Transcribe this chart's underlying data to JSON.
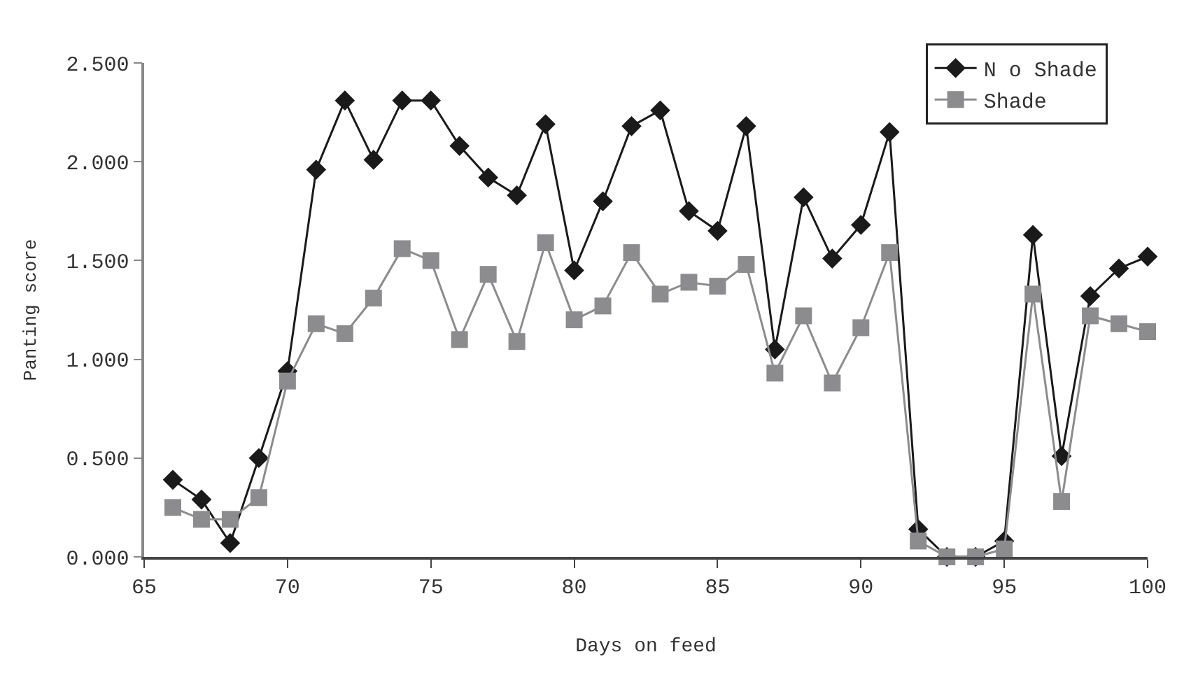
{
  "chart_data": {
    "type": "line",
    "xlabel": "Days on feed",
    "ylabel": "Panting score",
    "x": [
      66,
      67,
      68,
      69,
      70,
      71,
      72,
      73,
      74,
      75,
      76,
      77,
      78,
      79,
      80,
      81,
      82,
      83,
      84,
      85,
      86,
      87,
      88,
      89,
      90,
      91,
      92,
      93,
      94,
      95,
      96,
      97,
      98,
      99,
      100
    ],
    "series": [
      {
        "name": "N o Shade",
        "color": "#1a1a1a",
        "marker": "diamond",
        "values": [
          0.39,
          0.29,
          0.07,
          0.5,
          0.94,
          1.96,
          2.31,
          2.01,
          2.31,
          2.31,
          2.08,
          1.92,
          1.83,
          2.19,
          1.45,
          1.8,
          2.18,
          2.26,
          1.75,
          1.65,
          2.18,
          1.05,
          1.82,
          1.51,
          1.68,
          2.15,
          0.14,
          0.0,
          0.0,
          0.08,
          1.63,
          0.51,
          1.32,
          1.46,
          1.52
        ]
      },
      {
        "name": "Shade",
        "color": "#8c8c8e",
        "marker": "square",
        "values": [
          0.25,
          0.19,
          0.19,
          0.3,
          0.89,
          1.18,
          1.13,
          1.31,
          1.56,
          1.5,
          1.1,
          1.43,
          1.09,
          1.59,
          1.2,
          1.27,
          1.54,
          1.33,
          1.39,
          1.37,
          1.48,
          0.93,
          1.22,
          0.88,
          1.16,
          1.54,
          0.08,
          0.0,
          0.0,
          0.04,
          1.33,
          0.28,
          1.22,
          1.18,
          1.14
        ]
      }
    ],
    "xlim": [
      65,
      100
    ],
    "xticks": [
      65,
      70,
      75,
      80,
      85,
      90,
      95,
      100
    ],
    "ylim": [
      0,
      2.5
    ],
    "yticks": [
      {
        "value": 0,
        "label": "0.000"
      },
      {
        "value": 0.5,
        "label": "0.500"
      },
      {
        "value": 1,
        "label": "1.000"
      },
      {
        "value": 1.5,
        "label": "1.500"
      },
      {
        "value": 2,
        "label": "2.000"
      },
      {
        "value": 2.5,
        "label": "2.500"
      }
    ],
    "legend": "top right",
    "line_style": "solid"
  }
}
